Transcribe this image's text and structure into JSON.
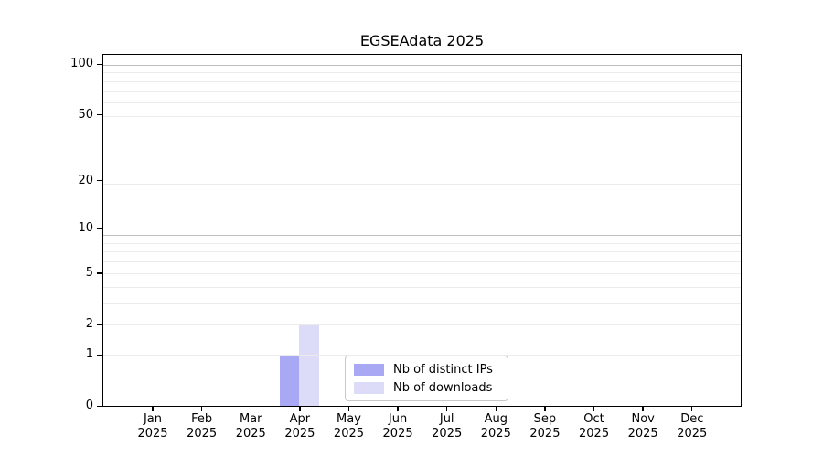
{
  "chart_data": {
    "type": "bar",
    "title": "EGSEAdata 2025",
    "x": {
      "months": [
        "Jan",
        "Feb",
        "Mar",
        "Apr",
        "May",
        "Jun",
        "Jul",
        "Aug",
        "Sep",
        "Oct",
        "Nov",
        "Dec"
      ],
      "year": "2025"
    },
    "series": [
      {
        "name": "Nb of distinct IPs",
        "color": "#a8a8f4",
        "values": [
          0,
          0,
          0,
          1,
          0,
          0,
          0,
          0,
          0,
          0,
          0,
          0
        ]
      },
      {
        "name": "Nb of downloads",
        "color": "#dcdcf8",
        "values": [
          0,
          0,
          0,
          2,
          0,
          0,
          0,
          0,
          0,
          0,
          0,
          0
        ]
      }
    ],
    "y_axis": {
      "scale": "log1p",
      "ticks": [
        0,
        1,
        2,
        5,
        10,
        20,
        50,
        100
      ],
      "max": 113
    },
    "grid": {
      "minor_values": [
        1,
        2,
        3,
        4,
        5,
        6,
        7,
        8,
        19,
        29,
        39,
        49,
        59,
        69,
        79,
        89
      ],
      "major_values": [
        9,
        99
      ],
      "minor_color": "#ebebeb",
      "major_color": "#bfbfbf"
    },
    "legend": {
      "position": "bottom-center"
    },
    "frame_color": "#000000",
    "background": "#ffffff"
  }
}
